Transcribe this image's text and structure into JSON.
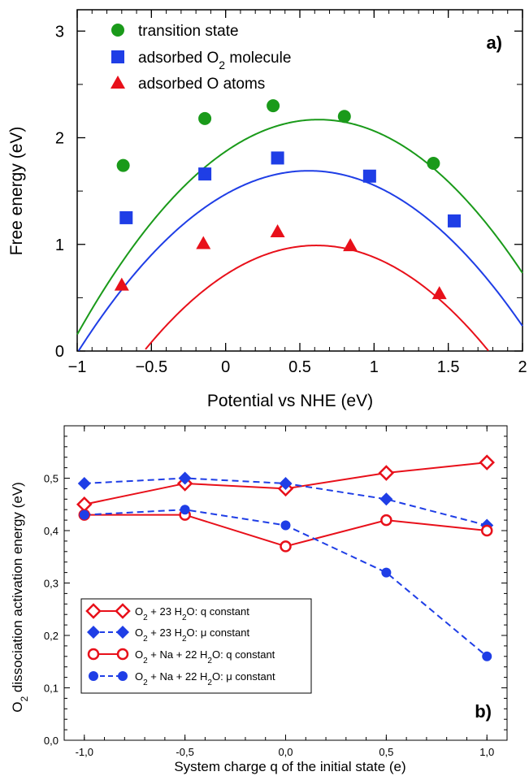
{
  "colors": {
    "green": "#1a9a1a",
    "blue": "#1f3ee6",
    "red": "#e8101a"
  },
  "chart_data": [
    {
      "type": "scatter",
      "panel_label": "a)",
      "xlabel": "Potential vs NHE (eV)",
      "ylabel": "Free energy (eV)",
      "xlim": [
        -1,
        2
      ],
      "ylim": [
        0,
        3.2
      ],
      "x_ticks": [
        "−1",
        "−0.5",
        "0",
        "0.5",
        "1",
        "1.5",
        "2"
      ],
      "y_ticks": [
        "0",
        "1",
        "2",
        "3"
      ],
      "legend_position": "top-left",
      "series": [
        {
          "name": "transition state",
          "marker": "circle",
          "color": "#1a9a1a",
          "points": [
            [
              -0.69,
              1.74
            ],
            [
              -0.14,
              2.18
            ],
            [
              0.32,
              2.3
            ],
            [
              0.8,
              2.2
            ],
            [
              1.4,
              1.76
            ]
          ],
          "fit": [
            -0.762,
            0.626,
            2.17
          ]
        },
        {
          "name": "adsorbed O2 molecule",
          "legend_text": "adsorbed O",
          "legend_sub": "2",
          "legend_tail": " molecule",
          "marker": "square",
          "color": "#1f3ee6",
          "points": [
            [
              -0.67,
              1.25
            ],
            [
              -0.14,
              1.66
            ],
            [
              0.35,
              1.81
            ],
            [
              0.97,
              1.64
            ],
            [
              1.54,
              1.22
            ]
          ],
          "fit": [
            -0.702,
            0.56,
            1.69
          ]
        },
        {
          "name": "adsorbed O atoms",
          "marker": "triangle",
          "color": "#e8101a",
          "points": [
            [
              -0.7,
              0.62
            ],
            [
              -0.15,
              1.01
            ],
            [
              0.35,
              1.12
            ],
            [
              0.84,
              0.99
            ],
            [
              1.44,
              0.54
            ]
          ],
          "fit": [
            -0.735,
            0.611,
            0.99
          ]
        }
      ]
    },
    {
      "type": "line",
      "panel_label": "b)",
      "xlabel": "System charge q of the initial state (e)",
      "ylabel": "O2 dissociation activation energy (eV)",
      "ylabel_prefix": "O",
      "ylabel_sub": "2",
      "ylabel_tail": " dissociation activation energy (eV)",
      "xlim": [
        -1.1,
        1.1
      ],
      "ylim": [
        0,
        0.6
      ],
      "x": [
        -1.0,
        -0.5,
        0.0,
        0.5,
        1.0
      ],
      "x_ticks": [
        "-1,0",
        "-0,5",
        "0,0",
        "0,5",
        "1,0"
      ],
      "y_ticks": [
        "0,0",
        "0,1",
        "0,2",
        "0,3",
        "0,4",
        "0,5"
      ],
      "legend_position": "bottom-left",
      "series": [
        {
          "name": "O2 + 23 H2O: q constant",
          "parts": [
            [
              "O",
              "2",
              " + 23 H",
              "2",
              "O: q constant"
            ]
          ],
          "color": "#e8101a",
          "marker": "diamond-open",
          "dash": false,
          "values": [
            0.45,
            0.49,
            0.48,
            0.51,
            0.53
          ]
        },
        {
          "name": "O2 + 23 H2O: μ constant",
          "parts": [
            [
              "O",
              "2",
              " + 23 H",
              "2",
              "O: μ constant"
            ]
          ],
          "color": "#1f3ee6",
          "marker": "diamond-filled",
          "dash": true,
          "values": [
            0.49,
            0.5,
            0.49,
            0.46,
            0.41
          ]
        },
        {
          "name": "O2 + Na + 22 H2O: q constant",
          "parts": [
            [
              "O",
              "2",
              " + Na + 22 H",
              "2",
              "O: q constant"
            ]
          ],
          "color": "#e8101a",
          "marker": "circle-open",
          "dash": false,
          "values": [
            0.43,
            0.43,
            0.37,
            0.42,
            0.4
          ]
        },
        {
          "name": "O2 + Na + 22 H2O: μ constant",
          "parts": [
            [
              "O",
              "2",
              " + Na + 22 H",
              "2",
              "O: μ constant"
            ]
          ],
          "color": "#1f3ee6",
          "marker": "circle-filled",
          "dash": true,
          "values": [
            0.43,
            0.44,
            0.41,
            0.32,
            0.16
          ]
        }
      ]
    }
  ]
}
